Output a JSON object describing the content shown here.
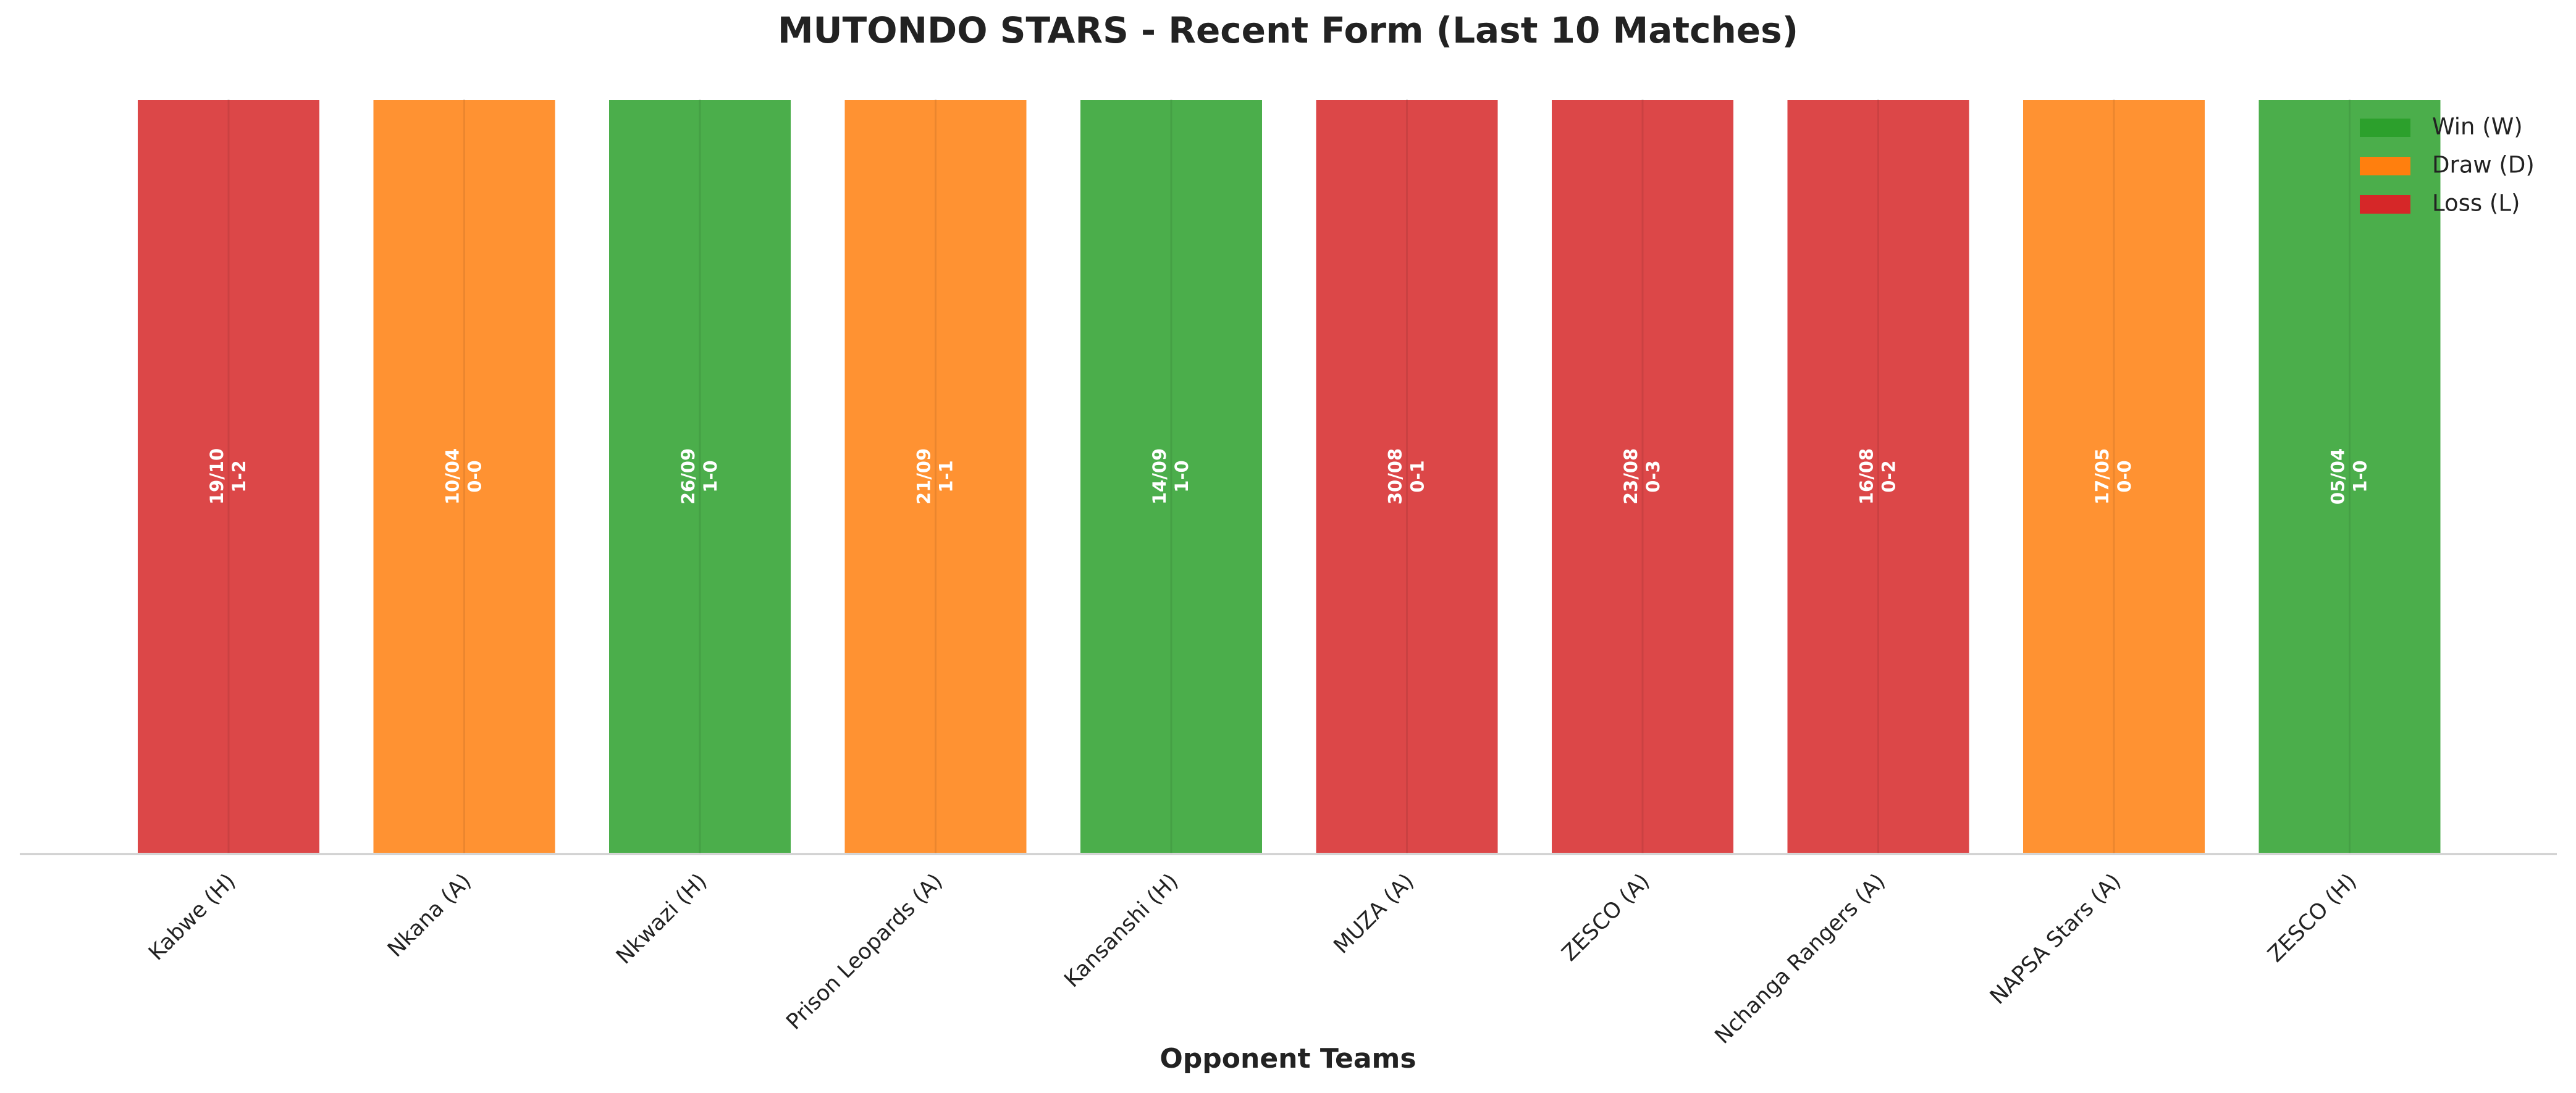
{
  "chart_data": {
    "type": "bar",
    "title": "MUTONDO STARS - Recent Form (Last 10 Matches)",
    "x_label": "Opponent Teams",
    "categories": [
      "Kabwe (H)",
      "Nkana (A)",
      "Nkwazi (H)",
      "Prison Leopards (A)",
      "Kansanshi (H)",
      "MUZA (A)",
      "ZESCO (A)",
      "Nchanga Rangers (A)",
      "NAPSA Stars (A)",
      "ZESCO (H)"
    ],
    "values": [
      1,
      1,
      1,
      1,
      1,
      1,
      1,
      1,
      1,
      1
    ],
    "dates": [
      "19/10",
      "10/04",
      "26/09",
      "21/09",
      "14/09",
      "30/08",
      "23/08",
      "16/08",
      "17/05",
      "05/04"
    ],
    "scores": [
      "1-2",
      "0-0",
      "1-0",
      "1-1",
      "1-0",
      "0-1",
      "0-3",
      "0-2",
      "0-0",
      "1-0"
    ],
    "colors": [
      "#d62728",
      "#ff7f0e",
      "#2ca02c",
      "#ff7f0e",
      "#2ca02c",
      "#d62728",
      "#d62728",
      "#d62728",
      "#ff7f0e",
      "#2ca02c"
    ],
    "ylim": [
      0,
      1
    ],
    "grid": true,
    "legend_position": "upper right",
    "legend": [
      {
        "name": "Win (W)",
        "color": "#2ca02c"
      },
      {
        "name": "Draw (D)",
        "color": "#ff7f0e"
      },
      {
        "name": "Loss (L)",
        "color": "#d62728"
      }
    ]
  }
}
